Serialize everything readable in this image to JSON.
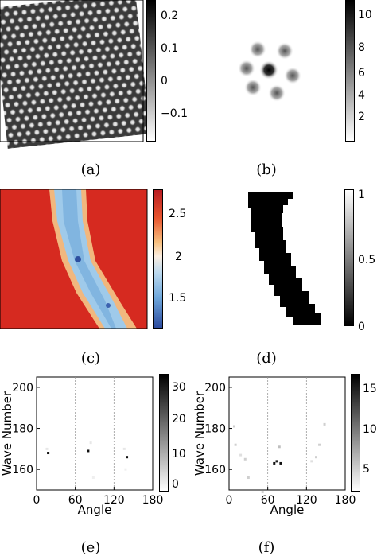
{
  "captions": {
    "a": "(a)",
    "b": "(b)",
    "c": "(c)",
    "d": "(d)",
    "e": "(e)",
    "f": "(f)"
  },
  "colorbar_a": {
    "ticks": [
      "0.2",
      "0.1",
      "0",
      "−0.1"
    ]
  },
  "colorbar_b": {
    "ticks": [
      "10",
      "8",
      "6",
      "4",
      "2"
    ]
  },
  "colorbar_c": {
    "ticks": [
      "2.5",
      "2",
      "1.5"
    ]
  },
  "colorbar_d": {
    "ticks": [
      "1",
      "0.5",
      "0"
    ]
  },
  "colorbar_e": {
    "ticks": [
      "30",
      "20",
      "10",
      "0"
    ]
  },
  "colorbar_f": {
    "ticks": [
      "15",
      "10",
      "5"
    ]
  },
  "chart_data": [
    {
      "type": "scatter",
      "panel": "(e)",
      "xlabel": "Angle",
      "ylabel": "Wave Number",
      "xlim": [
        0,
        180
      ],
      "ylim": [
        150,
        205
      ],
      "xticks": [
        "0",
        "60",
        "120",
        "180"
      ],
      "yticks": [
        "200",
        "180",
        "160"
      ],
      "vlines": [
        60,
        120
      ],
      "points": [
        {
          "x": 18,
          "y": 168,
          "v": 30
        },
        {
          "x": 16,
          "y": 170,
          "v": 3
        },
        {
          "x": 80,
          "y": 169,
          "v": 30
        },
        {
          "x": 84,
          "y": 173,
          "v": 3
        },
        {
          "x": 88,
          "y": 156,
          "v": 2
        },
        {
          "x": 140,
          "y": 166,
          "v": 30
        },
        {
          "x": 136,
          "y": 170,
          "v": 3
        },
        {
          "x": 138,
          "y": 160,
          "v": 2
        }
      ]
    },
    {
      "type": "scatter",
      "panel": "(f)",
      "xlabel": "Angle",
      "ylabel": "Wave Number",
      "xlim": [
        0,
        180
      ],
      "ylim": [
        150,
        205
      ],
      "xticks": [
        "0",
        "60",
        "120",
        "180"
      ],
      "yticks": [
        "200",
        "180",
        "160"
      ],
      "vlines": [
        60,
        120
      ],
      "points": [
        {
          "x": 8,
          "y": 181,
          "v": 3
        },
        {
          "x": 10,
          "y": 172,
          "v": 3
        },
        {
          "x": 25,
          "y": 165,
          "v": 3
        },
        {
          "x": 30,
          "y": 156,
          "v": 3
        },
        {
          "x": 52,
          "y": 149,
          "v": 3
        },
        {
          "x": 18,
          "y": 167,
          "v": 2
        },
        {
          "x": 70,
          "y": 163,
          "v": 15
        },
        {
          "x": 74,
          "y": 164,
          "v": 14
        },
        {
          "x": 80,
          "y": 163,
          "v": 15
        },
        {
          "x": 78,
          "y": 171,
          "v": 4
        },
        {
          "x": 135,
          "y": 166,
          "v": 3
        },
        {
          "x": 140,
          "y": 172,
          "v": 3
        },
        {
          "x": 148,
          "y": 182,
          "v": 3
        },
        {
          "x": 128,
          "y": 164,
          "v": 2
        }
      ]
    }
  ]
}
